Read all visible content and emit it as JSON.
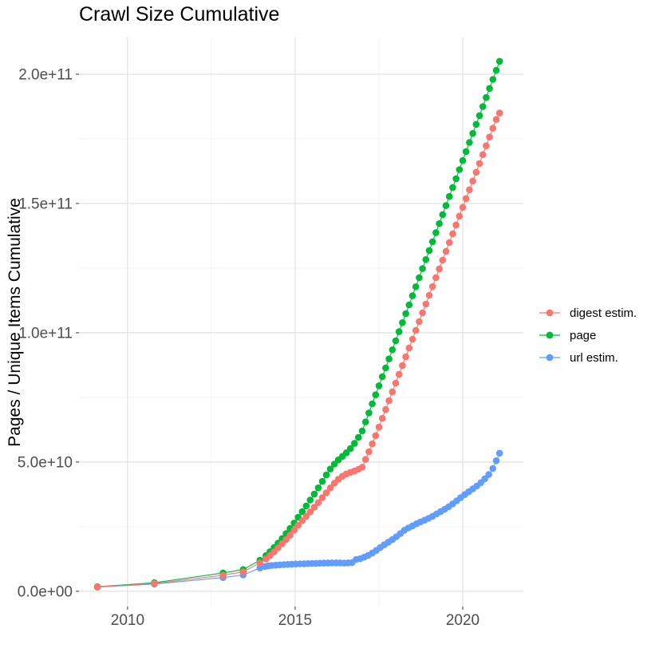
{
  "title": "Crawl Size Cumulative",
  "y_axis": {
    "label": "Pages / Unique Items Cumulative",
    "tick_labels": [
      "0.0e+00",
      "5.0e+10",
      "1.0e+11",
      "1.5e+11",
      "2.0e+11"
    ],
    "tick_values_e9": [
      0,
      50,
      100,
      150,
      200
    ],
    "minor_tick_values_e9": [
      25,
      75,
      125,
      175
    ]
  },
  "x_axis": {
    "tick_labels": [
      "2010",
      "2015",
      "2020"
    ],
    "tick_values": [
      2010,
      2015,
      2020
    ],
    "minor_tick_values": [
      2012.5,
      2017.5
    ]
  },
  "legend": {
    "items": [
      {
        "label": "digest estim.",
        "color": "#F8766D"
      },
      {
        "label": "page",
        "color": "#00BA38"
      },
      {
        "label": "url estim.",
        "color": "#619CFF"
      }
    ]
  },
  "colors": {
    "grid_major": "#E2E2E2",
    "grid_minor": "#F0F0F0",
    "tick_mark": "#333333",
    "tick_text": "#4D4D4D",
    "text": "#000000",
    "background": "#FFFFFF"
  },
  "chart_data": {
    "type": "line",
    "title": "Crawl Size Cumulative",
    "xlabel": "",
    "ylabel": "Pages / Unique Items Cumulative",
    "value_unit": "pages x 1e9",
    "xlim": [
      2008.55,
      2021.81
    ],
    "ylim_e9": [
      -5.9,
      214.2
    ],
    "x_ticks": [
      2010,
      2015,
      2020
    ],
    "x_minor_ticks": [
      2012.5,
      2017.5
    ],
    "y_ticks_e9": [
      0,
      50,
      100,
      150,
      200
    ],
    "y_minor_ticks_e9": [
      25,
      75,
      125,
      175
    ],
    "y_tick_labels": [
      "0.0e+00",
      "5.0e+10",
      "1.0e+11",
      "1.5e+11",
      "2.0e+11"
    ],
    "grid": true,
    "legend_position": "right",
    "marker_radius": 4.3,
    "draw_order": [
      1,
      2,
      0
    ],
    "series": [
      {
        "name": "digest estim.",
        "color": "#F8766D",
        "x": [
          2009.1,
          2010.8,
          2012.85,
          2013.45,
          2013.95,
          2014.13,
          2014.25,
          2014.37,
          2014.49,
          2014.61,
          2014.73,
          2014.85,
          2014.97,
          2015.09,
          2015.21,
          2015.33,
          2015.45,
          2015.57,
          2015.69,
          2015.81,
          2015.93,
          2016.05,
          2016.17,
          2016.29,
          2016.41,
          2016.53,
          2016.65,
          2016.77,
          2016.89,
          2017.0,
          2017.1,
          2017.2,
          2017.3,
          2017.4,
          2017.5,
          2017.6,
          2017.7,
          2017.8,
          2017.9,
          2018.0,
          2018.1,
          2018.2,
          2018.3,
          2018.4,
          2018.5,
          2018.6,
          2018.7,
          2018.8,
          2018.9,
          2019.0,
          2019.1,
          2019.2,
          2019.3,
          2019.4,
          2019.5,
          2019.6,
          2019.7,
          2019.8,
          2019.9,
          2020.0,
          2020.1,
          2020.2,
          2020.3,
          2020.4,
          2020.5,
          2020.6,
          2020.7,
          2020.8,
          2020.9,
          2021.0,
          2021.1
        ],
        "values_e9": [
          1.7,
          3.0,
          6.2,
          7.5,
          11.0,
          12.5,
          13.8,
          15.2,
          16.8,
          18.4,
          20.0,
          21.7,
          23.6,
          25.5,
          27.3,
          29.0,
          30.7,
          32.5,
          34.3,
          36.2,
          38.1,
          40.0,
          41.8,
          43.3,
          44.5,
          45.4,
          46.0,
          46.5,
          47.2,
          48.0,
          51.0,
          54.0,
          57.0,
          60.2,
          63.5,
          66.9,
          70.3,
          73.7,
          77.1,
          80.5,
          83.9,
          87.3,
          90.7,
          94.1,
          97.5,
          100.9,
          104.3,
          107.7,
          111.1,
          114.5,
          117.9,
          121.3,
          124.7,
          128.1,
          131.5,
          134.9,
          138.3,
          141.7,
          145.1,
          148.5,
          151.9,
          155.3,
          158.7,
          162.1,
          165.5,
          168.9,
          172.3,
          175.7,
          179.1,
          182.5,
          185.0
        ]
      },
      {
        "name": "page",
        "color": "#00BA38",
        "x": [
          2009.1,
          2010.8,
          2012.85,
          2013.45,
          2013.95,
          2014.13,
          2014.25,
          2014.37,
          2014.49,
          2014.61,
          2014.73,
          2014.85,
          2014.97,
          2015.09,
          2015.21,
          2015.33,
          2015.45,
          2015.57,
          2015.69,
          2015.81,
          2015.93,
          2016.05,
          2016.17,
          2016.29,
          2016.41,
          2016.53,
          2016.65,
          2016.77,
          2016.89,
          2017.0,
          2017.1,
          2017.2,
          2017.3,
          2017.4,
          2017.5,
          2017.6,
          2017.7,
          2017.8,
          2017.9,
          2018.0,
          2018.1,
          2018.2,
          2018.3,
          2018.4,
          2018.5,
          2018.6,
          2018.7,
          2018.8,
          2018.9,
          2019.0,
          2019.1,
          2019.2,
          2019.3,
          2019.4,
          2019.5,
          2019.6,
          2019.7,
          2019.8,
          2019.9,
          2020.0,
          2020.1,
          2020.2,
          2020.3,
          2020.4,
          2020.5,
          2020.6,
          2020.7,
          2020.8,
          2020.9,
          2021.0,
          2021.1
        ],
        "values_e9": [
          1.8,
          3.3,
          7.1,
          8.4,
          12.0,
          13.8,
          15.3,
          16.9,
          18.6,
          20.4,
          22.3,
          24.3,
          26.4,
          28.6,
          30.8,
          33.0,
          35.3,
          37.6,
          40.0,
          42.5,
          45.0,
          47.3,
          49.2,
          50.8,
          52.2,
          53.6,
          55.2,
          57.2,
          59.5,
          62.0,
          65.5,
          69.0,
          72.5,
          76.0,
          79.5,
          83.0,
          86.4,
          89.9,
          93.4,
          96.9,
          100.4,
          103.9,
          107.4,
          110.8,
          114.3,
          117.8,
          121.3,
          124.8,
          128.3,
          131.8,
          135.2,
          138.7,
          142.2,
          145.7,
          149.2,
          152.7,
          156.2,
          159.6,
          163.1,
          166.6,
          170.1,
          173.6,
          177.1,
          180.6,
          184.0,
          187.5,
          191.0,
          194.5,
          198.0,
          201.5,
          205.0
        ]
      },
      {
        "name": "url estim.",
        "color": "#619CFF",
        "x": [
          2009.1,
          2010.8,
          2012.85,
          2013.45,
          2013.95,
          2014.1,
          2014.2,
          2014.3,
          2014.42,
          2014.54,
          2014.66,
          2014.78,
          2014.9,
          2015.02,
          2015.14,
          2015.26,
          2015.38,
          2015.5,
          2015.62,
          2015.74,
          2015.86,
          2015.98,
          2016.1,
          2016.22,
          2016.34,
          2016.46,
          2016.58,
          2016.7,
          2016.82,
          2016.94,
          2017.06,
          2017.18,
          2017.3,
          2017.42,
          2017.54,
          2017.66,
          2017.78,
          2017.9,
          2018.02,
          2018.14,
          2018.26,
          2018.38,
          2018.5,
          2018.62,
          2018.74,
          2018.86,
          2018.98,
          2019.1,
          2019.22,
          2019.34,
          2019.46,
          2019.58,
          2019.7,
          2019.82,
          2019.94,
          2020.06,
          2020.18,
          2020.3,
          2020.42,
          2020.54,
          2020.66,
          2020.78,
          2020.9,
          2021.0,
          2021.1
        ],
        "values_e9": [
          1.6,
          2.8,
          5.3,
          6.3,
          9.0,
          9.6,
          9.8,
          10.0,
          10.1,
          10.2,
          10.3,
          10.4,
          10.5,
          10.55,
          10.6,
          10.65,
          10.7,
          10.75,
          10.8,
          10.85,
          10.9,
          10.95,
          11.0,
          11.0,
          11.0,
          10.9,
          11.0,
          11.1,
          12.3,
          12.6,
          13.2,
          13.9,
          14.8,
          15.8,
          16.9,
          18.0,
          19.0,
          20.0,
          21.1,
          22.3,
          23.6,
          24.5,
          25.3,
          26.1,
          26.8,
          27.5,
          28.2,
          29.0,
          29.9,
          30.8,
          31.7,
          32.7,
          33.8,
          35.0,
          36.2,
          37.4,
          38.5,
          39.6,
          40.7,
          42.0,
          43.5,
          45.2,
          47.5,
          50.5,
          53.4
        ]
      }
    ]
  }
}
